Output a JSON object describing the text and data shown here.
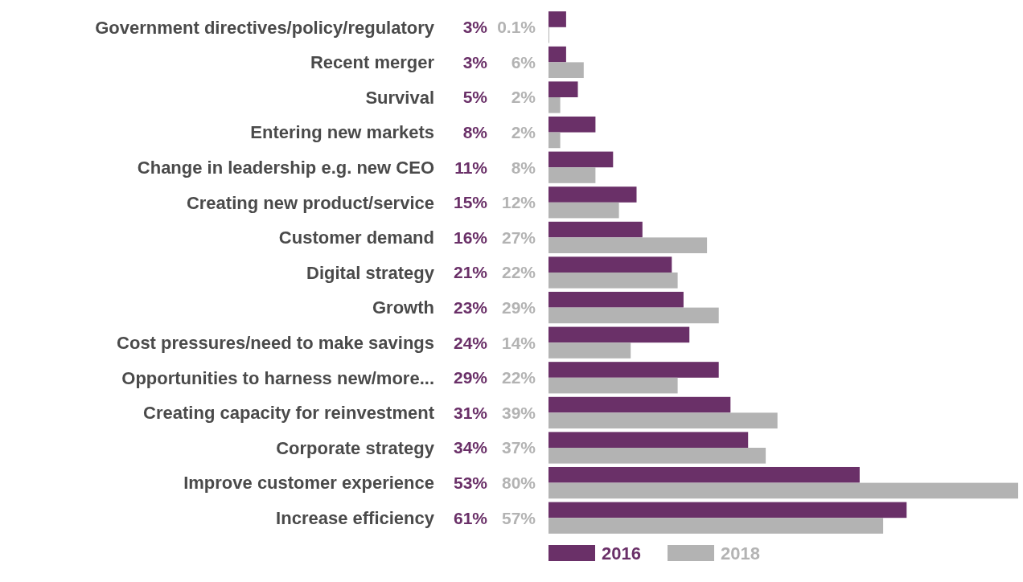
{
  "chart_data": {
    "type": "bar",
    "orientation": "horizontal",
    "legend": "bottom",
    "categories": [
      "Government directives/policy/regulatory",
      "Recent merger",
      "Survival",
      "Entering new markets",
      "Change in leadership e.g. new CEO",
      "Creating new product/service",
      "Customer demand",
      "Digital strategy",
      "Growth",
      "Cost pressures/need to make savings",
      "Opportunities to harness new/more...",
      "Creating capacity for reinvestment",
      "Corporate strategy",
      "Improve customer experience",
      "Increase efficiency"
    ],
    "series": [
      {
        "name": "2016",
        "color": "#6a3068",
        "values": [
          3,
          3,
          5,
          8,
          11,
          15,
          16,
          21,
          23,
          24,
          29,
          31,
          34,
          53,
          61
        ],
        "value_labels": [
          "3%",
          "3%",
          "5%",
          "8%",
          "11%",
          "15%",
          "16%",
          "21%",
          "23%",
          "24%",
          "29%",
          "31%",
          "34%",
          "53%",
          "61%"
        ]
      },
      {
        "name": "2018",
        "color": "#b3b3b3",
        "values": [
          0.1,
          6,
          2,
          2,
          8,
          12,
          27,
          22,
          29,
          14,
          22,
          39,
          37,
          80,
          57
        ],
        "value_labels": [
          "0.1%",
          "6%",
          "2%",
          "2%",
          "8%",
          "12%",
          "27%",
          "22%",
          "29%",
          "14%",
          "22%",
          "39%",
          "37%",
          "80%",
          "57%"
        ]
      }
    ]
  }
}
